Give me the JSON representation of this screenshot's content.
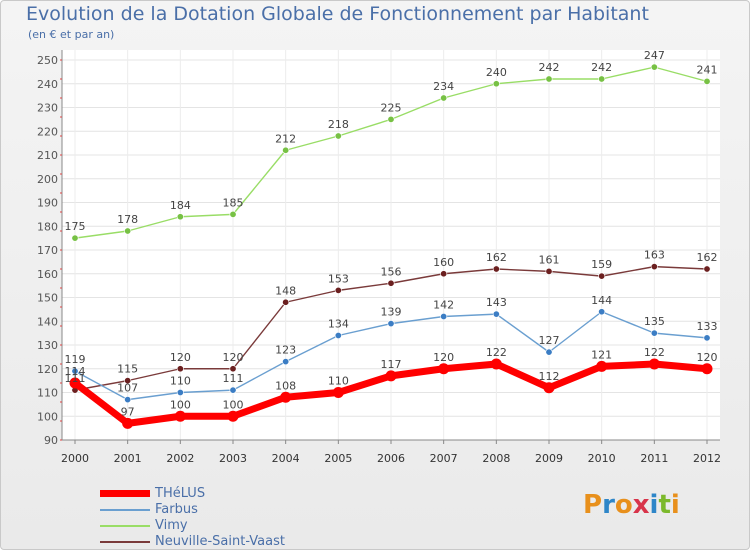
{
  "title": "Evolution de la Dotation Globale de Fonctionnement par Habitant",
  "subtitle": "(en € et par an)",
  "logo": {
    "letters": [
      "P",
      "r",
      "o",
      "x",
      "i",
      "t",
      "i"
    ],
    "colors": [
      "#e8901c",
      "#2e86c8",
      "#e8901c",
      "#d8344a",
      "#2e86c8",
      "#7cb92c",
      "#e8901c"
    ]
  },
  "chart_data": {
    "type": "line",
    "title": "Evolution de la Dotation Globale de Fonctionnement par Habitant",
    "subtitle": "(en € et par an)",
    "xlabel": "",
    "ylabel": "",
    "ylim": [
      90,
      250
    ],
    "yticks": [
      90,
      100,
      110,
      120,
      130,
      140,
      150,
      160,
      170,
      180,
      190,
      200,
      210,
      220,
      230,
      240,
      250
    ],
    "categories": [
      "2000",
      "2001",
      "2002",
      "2003",
      "2004",
      "2005",
      "2006",
      "2007",
      "2008",
      "2009",
      "2010",
      "2011",
      "2012"
    ],
    "grid": true,
    "legend_position": "bottom-left",
    "series": [
      {
        "name": "Vimy",
        "color": "#99dd66",
        "marker": "#77c144",
        "style": "thin",
        "values": [
          175,
          178,
          184,
          185,
          212,
          218,
          225,
          234,
          240,
          242,
          242,
          247,
          241
        ]
      },
      {
        "name": "Neuville-Saint-Vaast",
        "color": "#7a3a3a",
        "marker": "#6b1f1f",
        "style": "thin",
        "values": [
          111,
          115,
          120,
          120,
          148,
          153,
          156,
          160,
          162,
          161,
          159,
          163,
          162
        ]
      },
      {
        "name": "Farbus",
        "color": "#6a9fd0",
        "marker": "#3b7dc4",
        "style": "thin",
        "values": [
          119,
          107,
          110,
          111,
          123,
          134,
          139,
          142,
          143,
          127,
          144,
          135,
          133
        ]
      },
      {
        "name": "THéLUS",
        "color": "#ff0000",
        "marker": "#ff0000",
        "style": "thick",
        "values": [
          114,
          97,
          100,
          100,
          108,
          110,
          117,
          120,
          122,
          112,
          121,
          122,
          120
        ]
      }
    ],
    "legend": [
      {
        "name": "THéLUS",
        "color": "#ff0000",
        "thick": true
      },
      {
        "name": "Farbus",
        "color": "#6a9fd0",
        "thick": false
      },
      {
        "name": "Vimy",
        "color": "#99dd66",
        "thick": false
      },
      {
        "name": "Neuville-Saint-Vaast",
        "color": "#7a3a3a",
        "thick": false
      }
    ]
  }
}
